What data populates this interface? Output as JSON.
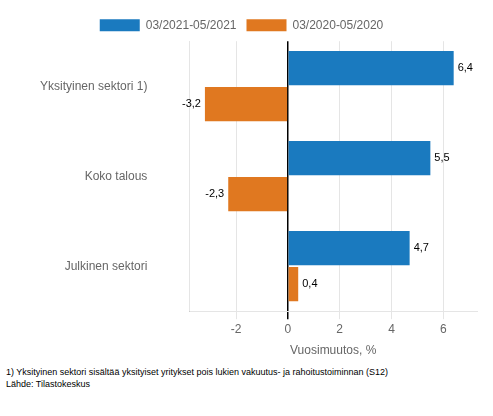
{
  "chart_data": {
    "type": "bar",
    "orientation": "horizontal",
    "categories": [
      "Yksityinen sektori 1)",
      "Koko talous",
      "Julkinen sektori"
    ],
    "series": [
      {
        "name": "03/2021-05/2021",
        "color": "#1a7abf",
        "values": [
          6.4,
          5.5,
          4.7
        ],
        "value_labels": [
          "6,4",
          "5,5",
          "4,7"
        ]
      },
      {
        "name": "03/2020-05/2020",
        "color": "#e07820",
        "values": [
          -3.2,
          -2.3,
          0.4
        ],
        "value_labels": [
          "-3,2",
          "-2,3",
          "0,4"
        ]
      }
    ],
    "xlabel": "Vuosimuutos, %",
    "xlim": [
      -3.8,
      7.3
    ],
    "xticks": [
      -2,
      0,
      2,
      4,
      6
    ],
    "grid": true,
    "legend": "top",
    "data_labels": true,
    "annotations": [
      "1) Yksityinen sektori sisältää yksityiset yritykset pois lukien vakuutus- ja rahoitustoiminnan (S12)",
      "Lähde: Tilastokeskus"
    ]
  }
}
